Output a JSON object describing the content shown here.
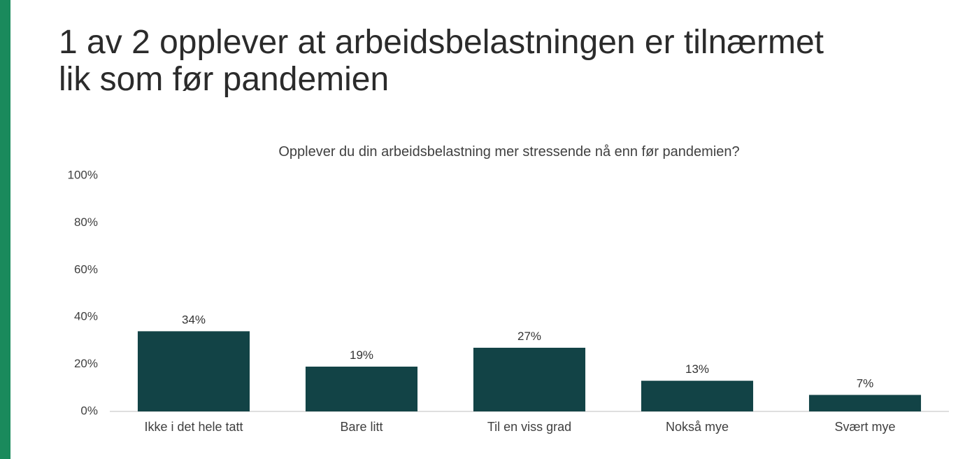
{
  "slide": {
    "title_line1": "1 av 2 opplever at arbeidsbelastningen er tilnærmet",
    "title_line2": "lik som før pandemien",
    "accent_color": "#1a8a5c"
  },
  "chart_data": {
    "type": "bar",
    "title": "Opplever du din arbeidsbelastning mer stressende nå enn før pandemien?",
    "categories": [
      "Ikke i det hele tatt",
      "Bare litt",
      "Til en viss grad",
      "Nokså mye",
      "Svært mye"
    ],
    "values": [
      34,
      19,
      27,
      13,
      7
    ],
    "value_labels": [
      "34%",
      "19%",
      "27%",
      "13%",
      "7%"
    ],
    "yticks": [
      0,
      20,
      40,
      60,
      80,
      100
    ],
    "ytick_labels": [
      "0%",
      "20%",
      "40%",
      "60%",
      "80%",
      "100%"
    ],
    "ylim": [
      0,
      100
    ],
    "xlabel": "",
    "ylabel": "",
    "grid": false,
    "legend": "none",
    "bar_color": "#124346"
  }
}
